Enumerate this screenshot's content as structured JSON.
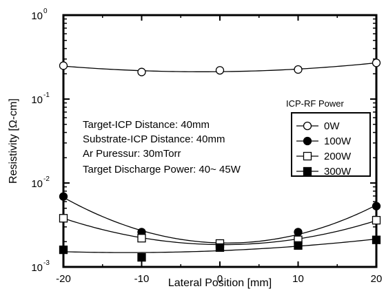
{
  "chart_data": {
    "type": "line",
    "xlabel": "Lateral Position [mm]",
    "ylabel": "Resistivity [Ω-cm]",
    "xlim": [
      -20,
      20
    ],
    "ylim": [
      0.001,
      1
    ],
    "y_scale": "log",
    "x_ticks": [
      "-20",
      "-10",
      "0",
      "10",
      "20"
    ],
    "y_ticks": [
      {
        "base": "10",
        "exp": "0"
      },
      {
        "base": "10",
        "exp": "-1"
      },
      {
        "base": "10",
        "exp": "-2"
      },
      {
        "base": "10",
        "exp": "-3"
      }
    ],
    "annotations": [
      "Target-ICP Distance: 40mm",
      "Substrate-ICP Distance: 40mm",
      "Ar Puressur: 30mTorr",
      "Target Discharge Power: 40~ 45W"
    ],
    "legend_title": "ICP-RF Power",
    "legend_position": "right",
    "grid": false,
    "x": [
      -20,
      -10,
      0,
      10,
      20
    ],
    "series": [
      {
        "name": "0W",
        "marker": "open-circle",
        "values": [
          0.25,
          0.21,
          0.22,
          0.225,
          0.27
        ]
      },
      {
        "name": "100W",
        "marker": "filled-circle",
        "values": [
          0.0069,
          0.0026,
          0.0019,
          0.0026,
          0.0053
        ]
      },
      {
        "name": "200W",
        "marker": "open-square",
        "values": [
          0.0038,
          0.0022,
          0.0019,
          0.0021,
          0.0036
        ]
      },
      {
        "name": "300W",
        "marker": "filled-square",
        "values": [
          0.0016,
          0.0013,
          0.0017,
          0.0018,
          0.0021
        ]
      }
    ]
  }
}
